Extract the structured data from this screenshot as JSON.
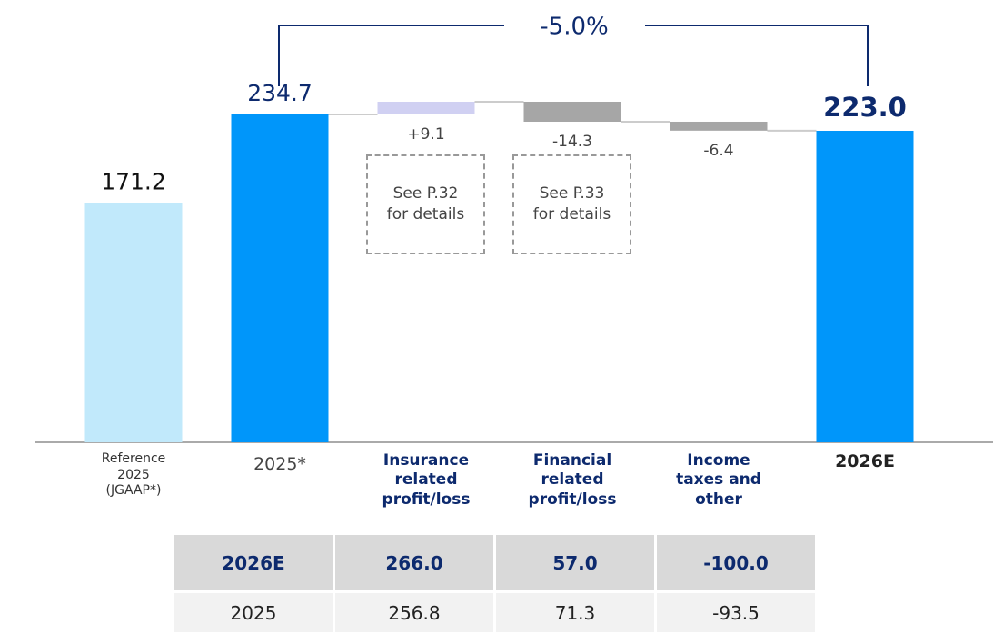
{
  "chart_data": {
    "type": "waterfall",
    "categories": [
      "Reference 2025 (JGAAP*)",
      "2025*",
      "Insurance related profit/loss",
      "Financial related profit/loss",
      "Income taxes and other",
      "2026E"
    ],
    "values": [
      171.2,
      234.7,
      9.1,
      -14.3,
      -6.4,
      223.0
    ],
    "value_labels": [
      "171.2",
      "234.7",
      "+9.1",
      "-14.3",
      "-6.4",
      "223.0"
    ],
    "measure": [
      "absolute",
      "absolute",
      "relative",
      "relative",
      "relative",
      "total"
    ],
    "colors": [
      "#c1e9fb",
      "#0096fa",
      "#d0d0f2",
      "#a6a6a6",
      "#a6a6a6",
      "#0096fa"
    ],
    "annotation": "-5.0%",
    "notes": [
      "See P.32 for details",
      "See P.33 for details"
    ]
  },
  "table": {
    "rows": [
      [
        "2026E",
        "266.0",
        "57.0",
        "-100.0"
      ],
      [
        "2025",
        "256.8",
        "71.3",
        "-93.5"
      ]
    ]
  }
}
